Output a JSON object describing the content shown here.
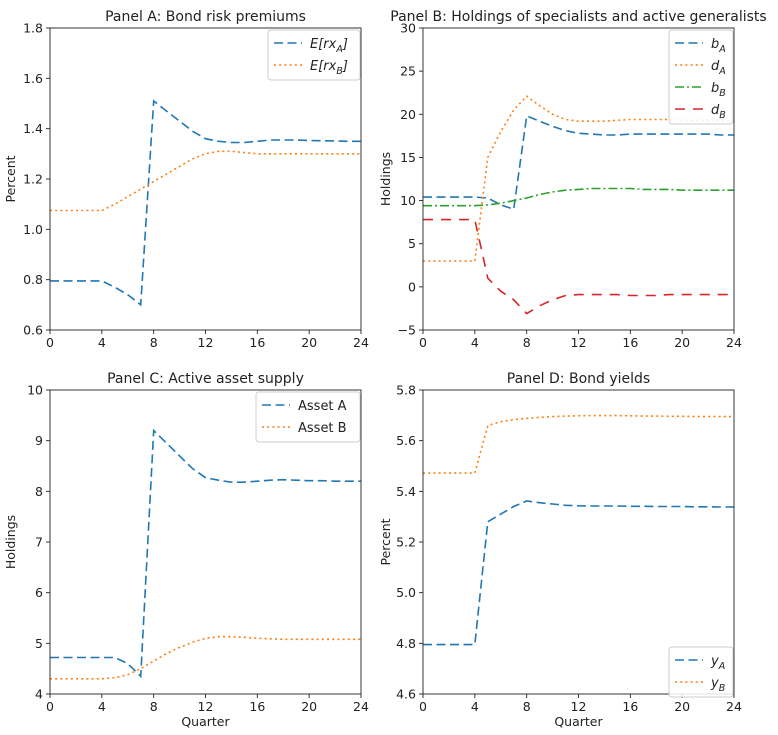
{
  "chart_data": [
    {
      "type": "line",
      "title": "Panel A: Bond risk premiums",
      "xlabel": "",
      "ylabel": "Percent",
      "xlim": [
        0,
        24
      ],
      "ylim": [
        0.6,
        1.8
      ],
      "xticks": [
        "0",
        "4",
        "8",
        "12",
        "16",
        "20",
        "24"
      ],
      "yticks": [
        "0.6",
        "0.8",
        "1.0",
        "1.2",
        "1.4",
        "1.6",
        "1.8"
      ],
      "legend": "top-right",
      "series": [
        {
          "name": "E[rx_A]",
          "legend_main": "E[rx",
          "legend_sub": "A",
          "legend_tail": "]",
          "style": "dashed",
          "color": "#1f77b4",
          "x": [
            0,
            4,
            5,
            6,
            7,
            8,
            9,
            10,
            11,
            12,
            13,
            14,
            15,
            16,
            17,
            18,
            19,
            20,
            21,
            22,
            23,
            24
          ],
          "y": [
            0.795,
            0.795,
            0.77,
            0.74,
            0.7,
            1.51,
            1.47,
            1.43,
            1.39,
            1.36,
            1.35,
            1.345,
            1.345,
            1.35,
            1.355,
            1.355,
            1.355,
            1.353,
            1.352,
            1.351,
            1.35,
            1.35
          ]
        },
        {
          "name": "E[rx_B]",
          "legend_main": "E[rx",
          "legend_sub": "B",
          "legend_tail": "]",
          "style": "dotted",
          "color": "#ff7f0e",
          "x": [
            0,
            4,
            5,
            6,
            7,
            8,
            9,
            10,
            11,
            12,
            13,
            14,
            15,
            16,
            17,
            18,
            19,
            20,
            21,
            22,
            23,
            24
          ],
          "y": [
            1.075,
            1.075,
            1.1,
            1.13,
            1.16,
            1.19,
            1.22,
            1.25,
            1.28,
            1.3,
            1.31,
            1.31,
            1.305,
            1.3,
            1.3,
            1.3,
            1.3,
            1.3,
            1.3,
            1.3,
            1.3,
            1.3
          ]
        }
      ]
    },
    {
      "type": "line",
      "title": "Panel B: Holdings of specialists and active generalists",
      "xlabel": "",
      "ylabel": "Holdings",
      "xlim": [
        0,
        24
      ],
      "ylim": [
        -5,
        30
      ],
      "xticks": [
        "0",
        "4",
        "8",
        "12",
        "16",
        "20",
        "24"
      ],
      "yticks": [
        "−5",
        "0",
        "5",
        "10",
        "15",
        "20",
        "25",
        "30"
      ],
      "legend": "top-right",
      "series": [
        {
          "name": "b_A",
          "legend_main": "b",
          "legend_sub": "A",
          "legend_tail": "",
          "style": "dashed",
          "color": "#1f77b4",
          "x": [
            0,
            4,
            5,
            6,
            7,
            8,
            9,
            10,
            11,
            12,
            13,
            14,
            15,
            16,
            17,
            18,
            19,
            20,
            21,
            22,
            23,
            24
          ],
          "y": [
            10.4,
            10.4,
            10.3,
            9.5,
            9.0,
            19.8,
            19.2,
            18.6,
            18.1,
            17.8,
            17.7,
            17.6,
            17.6,
            17.7,
            17.7,
            17.7,
            17.7,
            17.7,
            17.7,
            17.7,
            17.6,
            17.6
          ]
        },
        {
          "name": "d_A",
          "legend_main": "d",
          "legend_sub": "A",
          "legend_tail": "",
          "style": "dotted",
          "color": "#ff7f0e",
          "x": [
            0,
            4,
            5,
            6,
            7,
            8,
            9,
            10,
            11,
            12,
            13,
            14,
            15,
            16,
            17,
            18,
            19,
            20,
            21,
            22,
            23,
            24
          ],
          "y": [
            3.0,
            3.0,
            15.0,
            18.0,
            20.5,
            22.1,
            21.0,
            20.0,
            19.4,
            19.2,
            19.2,
            19.2,
            19.3,
            19.4,
            19.4,
            19.4,
            19.4,
            19.3,
            19.3,
            19.3,
            19.3,
            19.2
          ]
        },
        {
          "name": "b_B",
          "legend_main": "b",
          "legend_sub": "B",
          "legend_tail": "",
          "style": "dashdot",
          "color": "#2ca02c",
          "x": [
            0,
            4,
            5,
            6,
            7,
            8,
            9,
            10,
            11,
            12,
            13,
            14,
            15,
            16,
            17,
            18,
            19,
            20,
            21,
            22,
            23,
            24
          ],
          "y": [
            9.4,
            9.4,
            9.5,
            9.7,
            10.0,
            10.3,
            10.7,
            11.0,
            11.2,
            11.3,
            11.4,
            11.4,
            11.4,
            11.4,
            11.3,
            11.3,
            11.3,
            11.2,
            11.2,
            11.2,
            11.2,
            11.2
          ]
        },
        {
          "name": "d_B",
          "legend_main": "d",
          "legend_sub": "B",
          "legend_tail": "",
          "style": "loosedash",
          "color": "#d62728",
          "x": [
            0,
            4,
            5,
            6,
            7,
            8,
            9,
            10,
            11,
            12,
            13,
            14,
            15,
            16,
            17,
            18,
            19,
            20,
            21,
            22,
            23,
            24
          ],
          "y": [
            7.8,
            7.8,
            1.0,
            -0.5,
            -1.5,
            -3.1,
            -2.2,
            -1.5,
            -1.0,
            -0.9,
            -0.9,
            -0.9,
            -0.9,
            -1.0,
            -1.0,
            -1.0,
            -0.9,
            -0.9,
            -0.9,
            -0.9,
            -0.9,
            -0.9
          ]
        }
      ]
    },
    {
      "type": "line",
      "title": "Panel C: Active asset supply",
      "xlabel": "Quarter",
      "ylabel": "Holdings",
      "xlim": [
        0,
        24
      ],
      "ylim": [
        4,
        10
      ],
      "xticks": [
        "0",
        "4",
        "8",
        "12",
        "16",
        "20",
        "24"
      ],
      "yticks": [
        "4",
        "5",
        "6",
        "7",
        "8",
        "9",
        "10"
      ],
      "legend": "top-right",
      "series": [
        {
          "name": "Asset A",
          "legend_main": "Asset A",
          "legend_sub": "",
          "legend_tail": "",
          "style": "dashed",
          "color": "#1f77b4",
          "x": [
            0,
            4,
            5,
            6,
            7,
            8,
            9,
            10,
            11,
            12,
            13,
            14,
            15,
            16,
            17,
            18,
            19,
            20,
            21,
            22,
            23,
            24
          ],
          "y": [
            4.72,
            4.72,
            4.72,
            4.6,
            4.35,
            9.2,
            8.95,
            8.7,
            8.45,
            8.27,
            8.22,
            8.18,
            8.18,
            8.2,
            8.22,
            8.23,
            8.22,
            8.21,
            8.21,
            8.2,
            8.2,
            8.2
          ]
        },
        {
          "name": "Asset B",
          "legend_main": "Asset B",
          "legend_sub": "",
          "legend_tail": "",
          "style": "dotted",
          "color": "#ff7f0e",
          "x": [
            0,
            4,
            5,
            6,
            7,
            8,
            9,
            10,
            11,
            12,
            13,
            14,
            15,
            16,
            17,
            18,
            19,
            20,
            21,
            22,
            23,
            24
          ],
          "y": [
            4.3,
            4.3,
            4.32,
            4.38,
            4.5,
            4.65,
            4.8,
            4.92,
            5.02,
            5.1,
            5.13,
            5.13,
            5.12,
            5.1,
            5.09,
            5.08,
            5.08,
            5.08,
            5.08,
            5.08,
            5.08,
            5.08
          ]
        }
      ]
    },
    {
      "type": "line",
      "title": "Panel D: Bond yields",
      "xlabel": "Quarter",
      "ylabel": "Percent",
      "xlim": [
        0,
        24
      ],
      "ylim": [
        4.6,
        5.8
      ],
      "xticks": [
        "0",
        "4",
        "8",
        "12",
        "16",
        "20",
        "24"
      ],
      "yticks": [
        "4.6",
        "4.8",
        "5.0",
        "5.2",
        "5.4",
        "5.6",
        "5.8"
      ],
      "legend": "bottom-right",
      "series": [
        {
          "name": "y_A",
          "legend_main": "y",
          "legend_sub": "A",
          "legend_tail": "",
          "style": "dashed",
          "color": "#1f77b4",
          "x": [
            0,
            4,
            5,
            6,
            7,
            8,
            9,
            10,
            11,
            12,
            13,
            14,
            15,
            16,
            17,
            18,
            19,
            20,
            21,
            22,
            23,
            24
          ],
          "y": [
            4.795,
            4.795,
            5.28,
            5.31,
            5.34,
            5.362,
            5.355,
            5.35,
            5.345,
            5.343,
            5.342,
            5.342,
            5.342,
            5.341,
            5.341,
            5.34,
            5.34,
            5.34,
            5.339,
            5.339,
            5.338,
            5.338
          ]
        },
        {
          "name": "y_B",
          "legend_main": "y",
          "legend_sub": "B",
          "legend_tail": "",
          "style": "dotted",
          "color": "#ff7f0e",
          "x": [
            0,
            4,
            5,
            6,
            7,
            8,
            9,
            10,
            11,
            12,
            13,
            14,
            15,
            16,
            17,
            18,
            19,
            20,
            21,
            22,
            23,
            24
          ],
          "y": [
            5.472,
            5.472,
            5.66,
            5.675,
            5.683,
            5.688,
            5.692,
            5.695,
            5.697,
            5.698,
            5.699,
            5.699,
            5.699,
            5.698,
            5.697,
            5.697,
            5.696,
            5.696,
            5.695,
            5.695,
            5.695,
            5.695
          ]
        }
      ]
    }
  ]
}
